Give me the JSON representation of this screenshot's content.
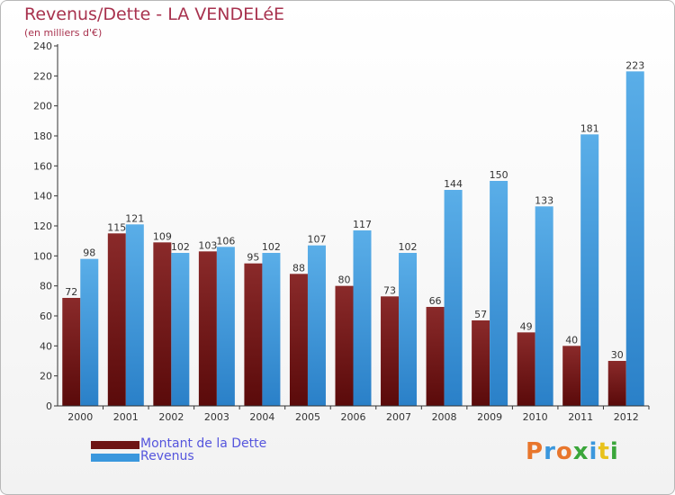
{
  "header": {
    "title": "Revenus/Dette - LA VENDELéE",
    "subtitle": "(en milliers d'€)"
  },
  "colors": {
    "dette": "#6e1414",
    "revenus": "#3a97dd",
    "title": "#a8324e",
    "legend_text": "#5555dd"
  },
  "legend": {
    "items": [
      {
        "label": "Montant de la Dette",
        "color": "#6e1414"
      },
      {
        "label": "Revenus",
        "color": "#3a97dd"
      }
    ]
  },
  "logo": {
    "text": "Proxiti",
    "letter_colors": [
      "#e8762c",
      "#3a97dd",
      "#e8762c",
      "#3aa63a",
      "#3a97dd",
      "#e8c21c",
      "#3aa63a"
    ]
  },
  "chart_data": {
    "type": "bar",
    "title": "Revenus/Dette - LA VENDELéE",
    "subtitle": "(en milliers d'€)",
    "categories": [
      "2000",
      "2001",
      "2002",
      "2003",
      "2004",
      "2005",
      "2006",
      "2007",
      "2008",
      "2009",
      "2010",
      "2011",
      "2012"
    ],
    "series": [
      {
        "name": "Montant de la Dette",
        "values": [
          72,
          115,
          109,
          103,
          95,
          88,
          80,
          73,
          66,
          57,
          49,
          40,
          30
        ]
      },
      {
        "name": "Revenus",
        "values": [
          98,
          121,
          102,
          106,
          102,
          107,
          117,
          102,
          144,
          150,
          133,
          181,
          223
        ]
      }
    ],
    "ylim": [
      0,
      240
    ],
    "yticks": [
      0,
      20,
      40,
      60,
      80,
      100,
      120,
      140,
      160,
      180,
      200,
      220,
      240
    ],
    "grid": false,
    "legend_position": "bottom-left"
  }
}
